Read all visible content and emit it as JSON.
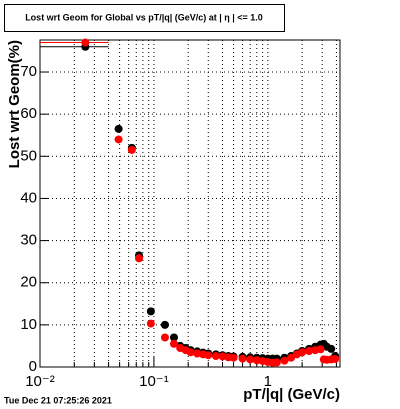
{
  "chart_data": {
    "type": "scatter",
    "title": "Lost wrt Geom for Global vs pT/|q| (GeV/c) at | η | <= 1.0",
    "xlabel": "pT/|q| (GeV/c)",
    "ylabel": "Lost wrt Geom(%)",
    "footer": "Tue Dec 21 07:25:26 2021",
    "xscale": "log",
    "grid": true,
    "xlim": [
      0.01,
      4.3
    ],
    "ylim": [
      0,
      77.6
    ],
    "xticks": [
      {
        "value": 0.01,
        "label": "10⁻²"
      },
      {
        "value": 0.1,
        "label": "10⁻¹"
      },
      1
    ],
    "xminor_ticks": [
      0.02,
      0.03,
      0.04,
      0.05,
      0.06,
      0.07,
      0.08,
      0.09,
      0.2,
      0.3,
      0.4,
      0.5,
      0.6,
      0.7,
      0.8,
      0.9,
      2,
      3,
      4
    ],
    "yticks": [
      0,
      10,
      20,
      30,
      40,
      50,
      60,
      70
    ],
    "x": [
      0.025,
      0.049,
      0.064,
      0.074,
      0.094,
      0.125,
      0.15,
      0.17,
      0.19,
      0.21,
      0.24,
      0.27,
      0.3,
      0.35,
      0.4,
      0.45,
      0.5,
      0.6,
      0.7,
      0.8,
      0.9,
      1.0,
      1.1,
      1.2,
      1.4,
      1.6,
      1.8,
      2.0,
      2.3,
      2.6,
      2.9,
      3.1,
      3.3,
      3.6,
      3.9
    ],
    "xerr": [
      0.015,
      0.004,
      0.004,
      0.004,
      0.006,
      0.008,
      0.01,
      0,
      0,
      0,
      0,
      0,
      0,
      0,
      0,
      0,
      0,
      0,
      0,
      0,
      0,
      0,
      0,
      0,
      0,
      0,
      0,
      0,
      0,
      0,
      0,
      0,
      0,
      0,
      0
    ],
    "series": [
      {
        "color": "#000000",
        "values": [
          76,
          56.5,
          52,
          26.5,
          13.2,
          10,
          7,
          5,
          4.5,
          4,
          3.7,
          3.4,
          3.2,
          3,
          2.8,
          2.6,
          2.5,
          2.4,
          2.3,
          2.2,
          2.1,
          2.0,
          2.0,
          2.0,
          2.2,
          2.6,
          3.2,
          3.8,
          4.3,
          4.8,
          5.3,
          5.5,
          4.8,
          4.3,
          2.6
        ]
      },
      {
        "color": "#ff0000",
        "values": [
          77,
          54,
          51.5,
          25.8,
          10.3,
          7,
          5.5,
          4.5,
          4.0,
          3.5,
          3.2,
          3.0,
          2.8,
          2.6,
          2.5,
          2.3,
          2.2,
          2.0,
          1.8,
          1.6,
          1.4,
          1.2,
          1.0,
          1.1,
          1.5,
          2.2,
          3.0,
          3.5,
          3.8,
          4.0,
          4.2,
          1.8,
          1.7,
          1.8,
          1.9
        ]
      }
    ]
  }
}
